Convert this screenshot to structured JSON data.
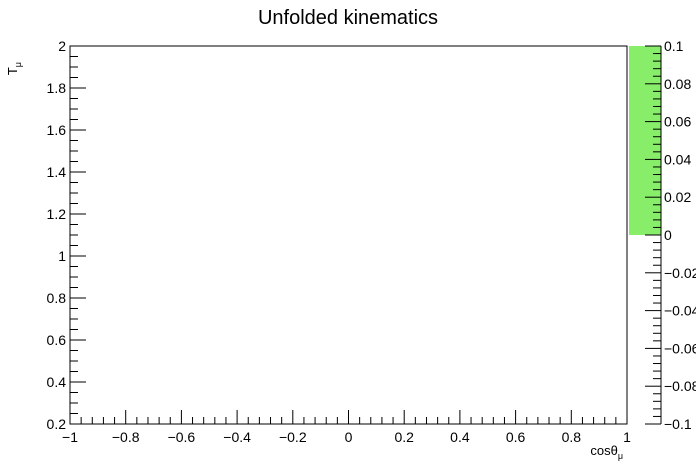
{
  "chart_data": {
    "type": "heatmap",
    "title": "Unfolded kinematics",
    "xlabel": {
      "base": "cosθ",
      "sub": "μ"
    },
    "ylabel": {
      "base": "T",
      "sub": "μ"
    },
    "xlim": [
      -1,
      1
    ],
    "ylim": [
      0.2,
      2
    ],
    "x_ticks": [
      "−1",
      "−0.8",
      "−0.6",
      "−0.4",
      "−0.2",
      "0",
      "0.2",
      "0.4",
      "0.6",
      "0.8",
      "1"
    ],
    "x_tick_values": [
      -1,
      -0.8,
      -0.6,
      -0.4,
      -0.2,
      0,
      0.2,
      0.4,
      0.6,
      0.8,
      1
    ],
    "y_ticks": [
      "0.2",
      "0.4",
      "0.6",
      "0.8",
      "1",
      "1.2",
      "1.4",
      "1.6",
      "1.8",
      "2"
    ],
    "y_tick_values": [
      0.2,
      0.4,
      0.6,
      0.8,
      1,
      1.2,
      1.4,
      1.6,
      1.8,
      2
    ],
    "values": [],
    "colorbar": {
      "range": [
        -0.1,
        0.1
      ],
      "fill_range": [
        0,
        0.1
      ],
      "fill_color": "#88ee6a",
      "ticks": [
        "0.1",
        "0.08",
        "0.06",
        "0.04",
        "0.02",
        "0",
        "−0.02",
        "−0.04",
        "−0.06",
        "−0.08",
        "−0.1"
      ],
      "tick_values": [
        0.1,
        0.08,
        0.06,
        0.04,
        0.02,
        0,
        -0.02,
        -0.04,
        -0.06,
        -0.08,
        -0.1
      ]
    }
  }
}
